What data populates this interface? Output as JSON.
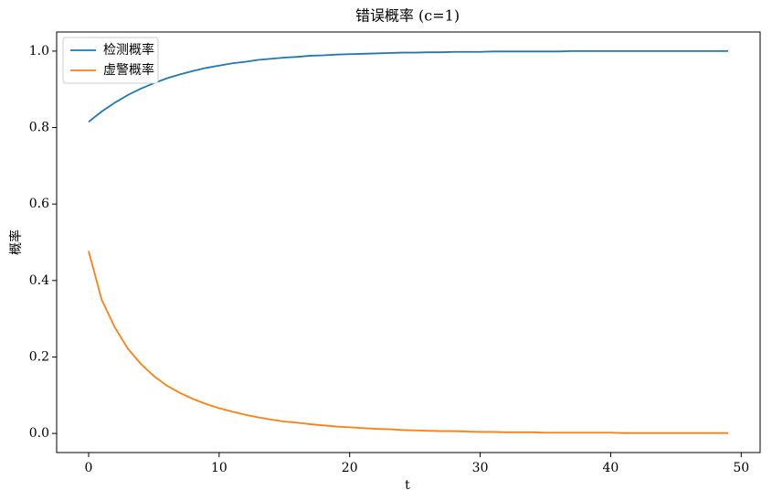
{
  "chart_data": {
    "type": "line",
    "title": "错误概率 (c=1)",
    "x_label": "t",
    "y_label": "概率",
    "x": [
      0,
      1,
      2,
      3,
      4,
      5,
      6,
      7,
      8,
      9,
      10,
      11,
      12,
      13,
      14,
      15,
      16,
      17,
      18,
      19,
      20,
      21,
      22,
      23,
      24,
      25,
      26,
      27,
      28,
      29,
      30,
      31,
      32,
      33,
      34,
      35,
      36,
      37,
      38,
      39,
      40,
      41,
      42,
      43,
      44,
      45,
      46,
      47,
      48,
      49
    ],
    "series": [
      {
        "name": "检测概率",
        "color": "#1f77b4",
        "values": [
          0.815,
          0.842,
          0.865,
          0.885,
          0.902,
          0.916,
          0.929,
          0.939,
          0.948,
          0.956,
          0.962,
          0.968,
          0.972,
          0.977,
          0.98,
          0.983,
          0.985,
          0.988,
          0.989,
          0.991,
          0.992,
          0.993,
          0.994,
          0.995,
          0.996,
          0.996,
          0.997,
          0.997,
          0.998,
          0.998,
          0.998,
          0.999,
          0.999,
          0.999,
          0.999,
          0.999,
          0.999,
          1,
          1,
          1,
          1,
          1,
          1,
          1,
          1,
          1,
          1,
          1,
          1,
          1
        ]
      },
      {
        "name": "虚警概率",
        "color": "#ff7f0e",
        "values": [
          0.477,
          0.35,
          0.278,
          0.222,
          0.182,
          0.15,
          0.125,
          0.106,
          0.09,
          0.077,
          0.066,
          0.057,
          0.049,
          0.042,
          0.036,
          0.031,
          0.028,
          0.024,
          0.021,
          0.018,
          0.016,
          0.014,
          0.012,
          0.011,
          0.009,
          0.008,
          0.007,
          0.006,
          0.006,
          0.005,
          0.004,
          0.004,
          0.003,
          0.003,
          0.003,
          0.002,
          0.002,
          0.002,
          0.002,
          0.002,
          0.002,
          0.001,
          0.001,
          0.001,
          0.001,
          0.001,
          0.001,
          0.001,
          0.001,
          0.001
        ]
      }
    ],
    "xlim": [
      -2.45,
      51.45
    ],
    "xticks": [
      0,
      10,
      20,
      30,
      40,
      50
    ],
    "ylim": [
      -0.05,
      1.05
    ],
    "yticks": [
      {
        "value": 0,
        "label": "0.0"
      },
      0.2,
      0.4,
      0.6,
      0.8,
      {
        "value": 1,
        "label": "1.0"
      }
    ],
    "legend": "upper left"
  }
}
